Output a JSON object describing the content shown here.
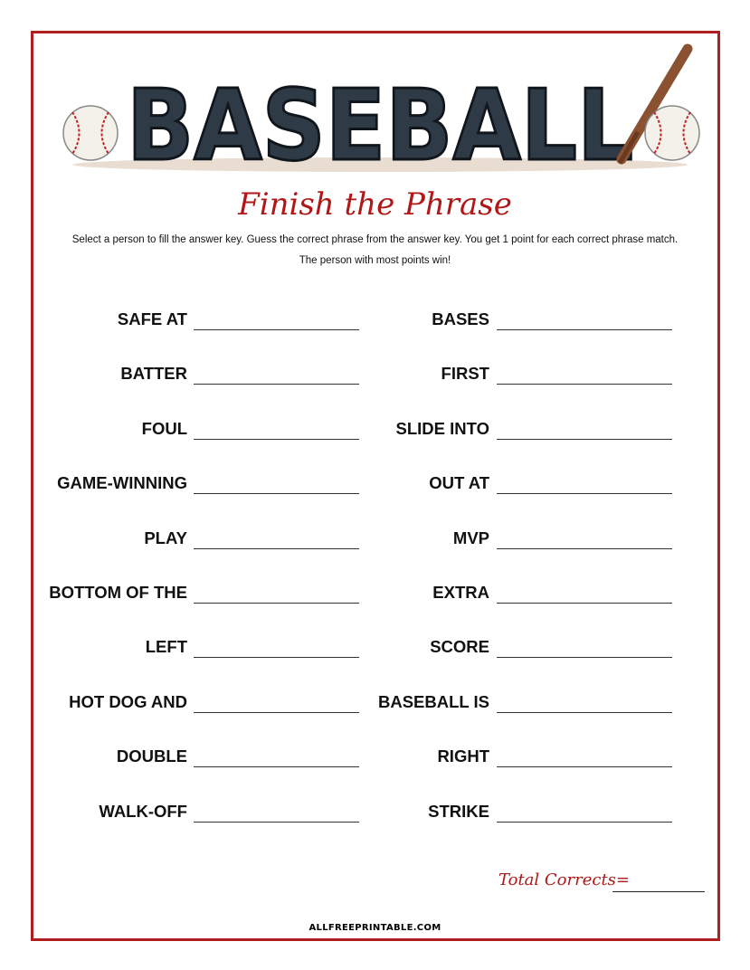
{
  "header": {
    "logo_text": "BASEBALL",
    "title": "Finish the Phrase",
    "instructions_line1": "Select a person to fill the answer key. Guess the correct phrase from the answer key. You get 1 point for each correct phrase match.",
    "instructions_line2": "The person with most points win!"
  },
  "phrases_left": [
    "SAFE AT",
    "BATTER",
    "FOUL",
    "GAME-WINNING",
    "PLAY",
    "BOTTOM OF THE",
    "LEFT",
    "HOT DOG AND",
    "DOUBLE",
    "WALK-OFF"
  ],
  "phrases_right": [
    "BASES",
    "FIRST",
    "SLIDE INTO",
    "OUT AT",
    "MVP",
    "EXTRA",
    "SCORE",
    "BASEBALL IS",
    "RIGHT",
    "STRIKE"
  ],
  "total_label": "Total Corrects=",
  "footer": "ALLFREEPRINTABLE.COM",
  "colors": {
    "accent": "#b01818",
    "logo": "#2e3a45"
  }
}
